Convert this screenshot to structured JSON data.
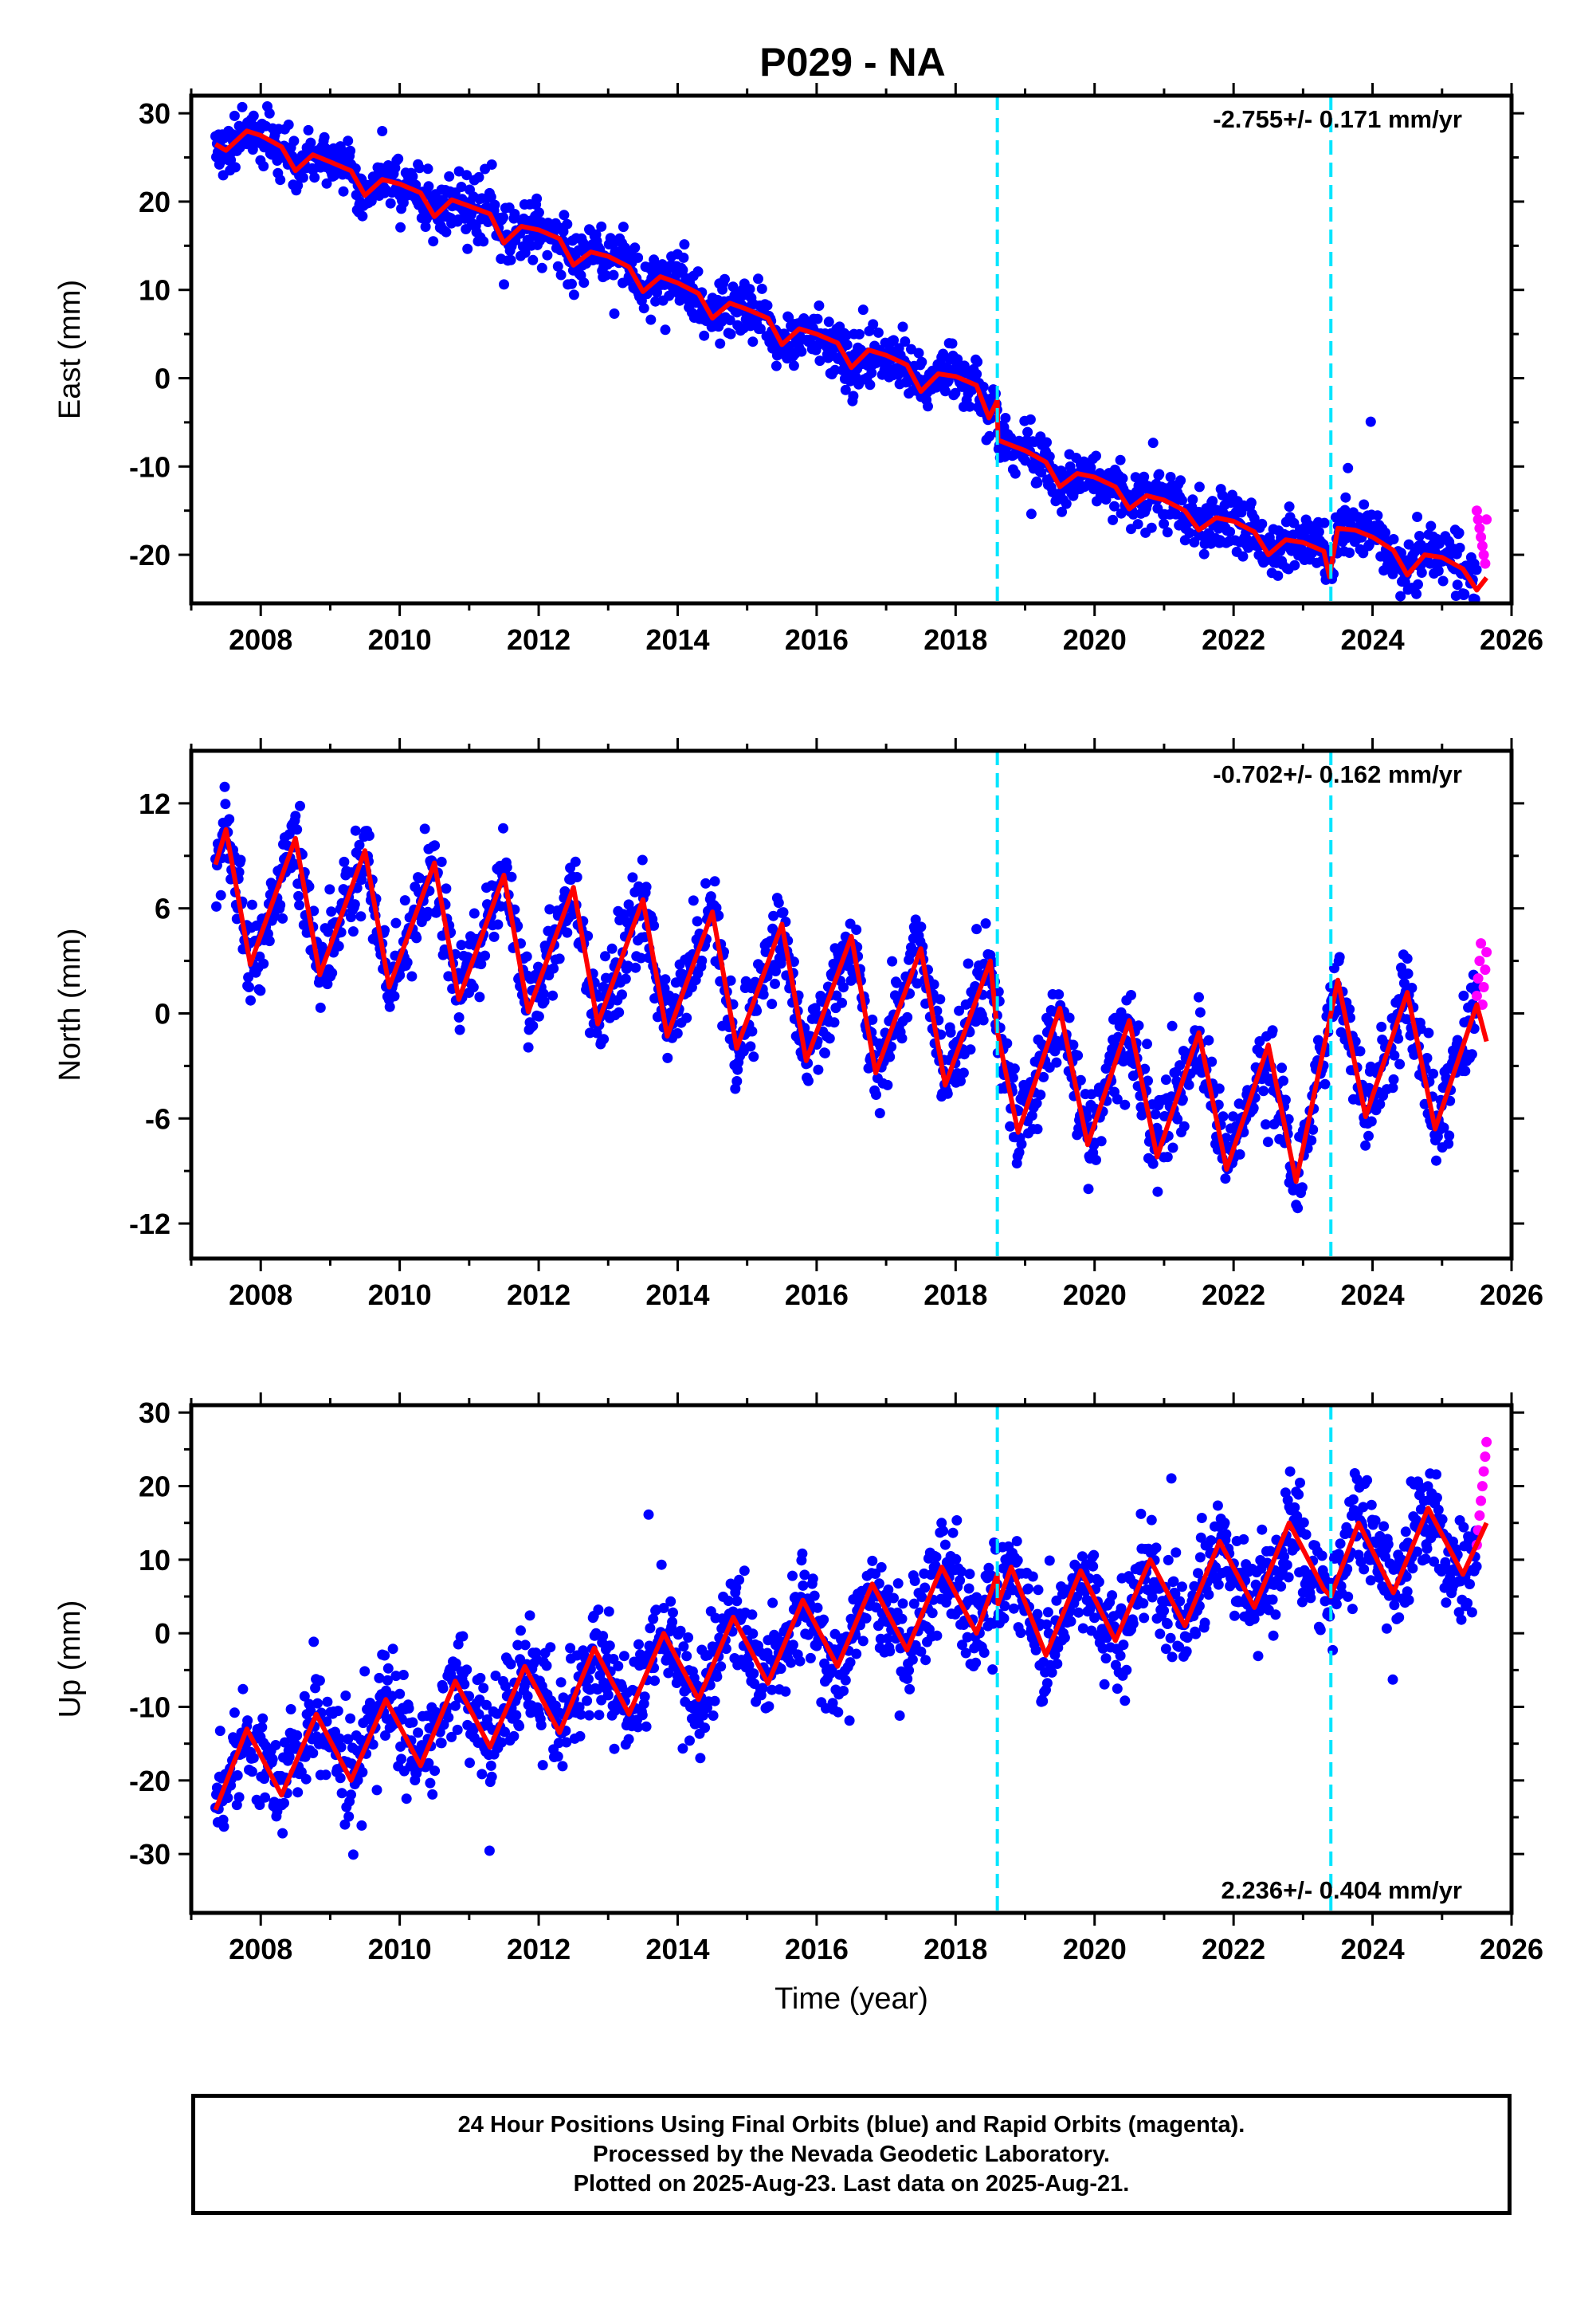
{
  "title": "P029 - NA",
  "colors": {
    "final_orbits": "#0000ff",
    "rapid_orbits": "#ff00ff",
    "model": "#ff0000",
    "events": "#00e5ff"
  },
  "footer": {
    "line1": "24 Hour Positions Using Final Orbits (blue) and Rapid Orbits (magenta).",
    "line2": "Processed by the Nevada Geodetic Laboratory.",
    "line3": "Plotted on 2025-Aug-23. Last data on 2025-Aug-21."
  },
  "chart_data": [
    {
      "type": "scatter",
      "component": "east",
      "ylabel": "East (mm)",
      "xlabel": "",
      "xlim": [
        2007.0,
        2026.0
      ],
      "ylim": [
        -25.5,
        32.0
      ],
      "xticks": [
        2008,
        2010,
        2012,
        2014,
        2016,
        2018,
        2020,
        2022,
        2024,
        2026
      ],
      "yticks": [
        -20,
        -10,
        0,
        10,
        20,
        30
      ],
      "rate_label": "-2.755+/- 0.171 mm/yr",
      "rate_position": "top-right",
      "event_lines": [
        2018.6,
        2023.4
      ],
      "data_start": 2007.35,
      "data_end": 2025.64,
      "rapid_start": 2025.5,
      "scatter_sd": 1.6,
      "model_curve": [
        [
          2007.35,
          26.5
        ],
        [
          2007.5,
          25.8
        ],
        [
          2007.8,
          28
        ],
        [
          2008.0,
          27.5
        ],
        [
          2008.3,
          26.2
        ],
        [
          2008.5,
          23.5
        ],
        [
          2008.75,
          25.3
        ],
        [
          2009.0,
          24.5
        ],
        [
          2009.3,
          23.5
        ],
        [
          2009.5,
          20.7
        ],
        [
          2009.75,
          22.5
        ],
        [
          2010.0,
          22
        ],
        [
          2010.3,
          21
        ],
        [
          2010.5,
          18.3
        ],
        [
          2010.75,
          20.2
        ],
        [
          2011.0,
          19.5
        ],
        [
          2011.3,
          18.6
        ],
        [
          2011.5,
          15.3
        ],
        [
          2011.75,
          17.2
        ],
        [
          2012.0,
          16.8
        ],
        [
          2012.3,
          15.8
        ],
        [
          2012.5,
          12.8
        ],
        [
          2012.75,
          14.3
        ],
        [
          2013.0,
          13.8
        ],
        [
          2013.3,
          12.6
        ],
        [
          2013.5,
          9.8
        ],
        [
          2013.75,
          11.5
        ],
        [
          2014.0,
          10.8
        ],
        [
          2014.3,
          9.6
        ],
        [
          2014.5,
          6.8
        ],
        [
          2014.75,
          8.5
        ],
        [
          2015.0,
          7.8
        ],
        [
          2015.3,
          6.8
        ],
        [
          2015.5,
          3.8
        ],
        [
          2015.75,
          5.6
        ],
        [
          2016.0,
          5
        ],
        [
          2016.3,
          4
        ],
        [
          2016.5,
          1.2
        ],
        [
          2016.75,
          3.2
        ],
        [
          2017.0,
          2.6
        ],
        [
          2017.3,
          1.5
        ],
        [
          2017.5,
          -1.5
        ],
        [
          2017.75,
          0.5
        ],
        [
          2018.0,
          0.2
        ],
        [
          2018.3,
          -0.8
        ],
        [
          2018.48,
          -4.5
        ],
        [
          2018.6,
          -2.5
        ],
        [
          2018.61,
          -7
        ],
        [
          2018.8,
          -7.6
        ],
        [
          2019.0,
          -8.2
        ],
        [
          2019.3,
          -9.5
        ],
        [
          2019.5,
          -12.3
        ],
        [
          2019.75,
          -10.8
        ],
        [
          2020.0,
          -11.2
        ],
        [
          2020.3,
          -12.3
        ],
        [
          2020.5,
          -14.8
        ],
        [
          2020.75,
          -13.3
        ],
        [
          2021.0,
          -13.8
        ],
        [
          2021.3,
          -15
        ],
        [
          2021.5,
          -17.2
        ],
        [
          2021.75,
          -15.8
        ],
        [
          2022.0,
          -16.2
        ],
        [
          2022.3,
          -17.4
        ],
        [
          2022.5,
          -20
        ],
        [
          2022.75,
          -18.3
        ],
        [
          2023.0,
          -18.6
        ],
        [
          2023.3,
          -19.6
        ],
        [
          2023.38,
          -22.5
        ],
        [
          2023.5,
          -17
        ],
        [
          2023.75,
          -17.2
        ],
        [
          2024.0,
          -18
        ],
        [
          2024.3,
          -19.5
        ],
        [
          2024.5,
          -22.3
        ],
        [
          2024.75,
          -20
        ],
        [
          2025.0,
          -20.3
        ],
        [
          2025.3,
          -21.6
        ],
        [
          2025.5,
          -24
        ],
        [
          2025.64,
          -22.6
        ]
      ],
      "rapid_values": [
        [
          2025.5,
          -15
        ],
        [
          2025.52,
          -16
        ],
        [
          2025.54,
          -17
        ],
        [
          2025.56,
          -18
        ],
        [
          2025.58,
          -19
        ],
        [
          2025.6,
          -20
        ],
        [
          2025.62,
          -21
        ],
        [
          2025.64,
          -16
        ]
      ]
    },
    {
      "type": "scatter",
      "component": "north",
      "ylabel": "North (mm)",
      "xlabel": "",
      "xlim": [
        2007.0,
        2026.0
      ],
      "ylim": [
        -14.0,
        15.0
      ],
      "xticks": [
        2008,
        2010,
        2012,
        2014,
        2016,
        2018,
        2020,
        2022,
        2024,
        2026
      ],
      "yticks": [
        -12,
        -6,
        0,
        6,
        12
      ],
      "rate_label": "-0.702+/- 0.162 mm/yr",
      "rate_position": "top-right",
      "event_lines": [
        2018.6,
        2023.4
      ],
      "data_start": 2007.35,
      "data_end": 2025.64,
      "rapid_start": 2025.5,
      "scatter_sd": 1.2,
      "model_curve": [
        [
          2007.35,
          8.5
        ],
        [
          2007.5,
          10.5
        ],
        [
          2007.85,
          2.8
        ],
        [
          2008.5,
          10.0
        ],
        [
          2008.85,
          2.2
        ],
        [
          2009.5,
          9.3
        ],
        [
          2009.85,
          1.5
        ],
        [
          2010.5,
          8.6
        ],
        [
          2010.85,
          0.8
        ],
        [
          2011.5,
          7.9
        ],
        [
          2011.85,
          0.1
        ],
        [
          2012.5,
          7.2
        ],
        [
          2012.85,
          -0.6
        ],
        [
          2013.5,
          6.5
        ],
        [
          2013.85,
          -1.3
        ],
        [
          2014.5,
          5.8
        ],
        [
          2014.85,
          -2.0
        ],
        [
          2015.5,
          5.1
        ],
        [
          2015.85,
          -2.7
        ],
        [
          2016.5,
          4.4
        ],
        [
          2016.85,
          -3.4
        ],
        [
          2017.5,
          3.7
        ],
        [
          2017.85,
          -4.1
        ],
        [
          2018.5,
          3.0
        ],
        [
          2018.6,
          -1.0
        ],
        [
          2018.9,
          -6.8
        ],
        [
          2019.5,
          0.3
        ],
        [
          2019.9,
          -7.5
        ],
        [
          2020.5,
          -0.4
        ],
        [
          2020.9,
          -8.2
        ],
        [
          2021.5,
          -1.1
        ],
        [
          2021.9,
          -8.9
        ],
        [
          2022.5,
          -1.8
        ],
        [
          2022.9,
          -9.6
        ],
        [
          2023.5,
          1.9
        ],
        [
          2023.9,
          -5.9
        ],
        [
          2024.5,
          1.2
        ],
        [
          2024.9,
          -6.6
        ],
        [
          2025.5,
          0.5
        ],
        [
          2025.64,
          -1.6
        ]
      ],
      "rapid_values": [
        [
          2025.5,
          1
        ],
        [
          2025.52,
          2
        ],
        [
          2025.54,
          3
        ],
        [
          2025.56,
          4
        ],
        [
          2025.58,
          0.5
        ],
        [
          2025.6,
          1.5
        ],
        [
          2025.62,
          2.5
        ],
        [
          2025.64,
          3.5
        ]
      ]
    },
    {
      "type": "scatter",
      "component": "up",
      "ylabel": "Up (mm)",
      "xlabel": "Time (year)",
      "xlim": [
        2007.0,
        2026.0
      ],
      "ylim": [
        -38.0,
        31.0
      ],
      "xticks": [
        2008,
        2010,
        2012,
        2014,
        2016,
        2018,
        2020,
        2022,
        2024,
        2026
      ],
      "yticks": [
        -30,
        -20,
        -10,
        0,
        10,
        20,
        30
      ],
      "rate_label": "2.236+/- 0.404 mm/yr",
      "rate_position": "bottom-right",
      "event_lines": [
        2018.6,
        2023.4
      ],
      "data_start": 2007.35,
      "data_end": 2025.64,
      "rapid_start": 2025.5,
      "scatter_sd": 3.6,
      "model_curve": [
        [
          2007.35,
          -24
        ],
        [
          2007.8,
          -13
        ],
        [
          2008.3,
          -22
        ],
        [
          2008.8,
          -11
        ],
        [
          2009.3,
          -20
        ],
        [
          2009.8,
          -9
        ],
        [
          2010.3,
          -18
        ],
        [
          2010.8,
          -6.5
        ],
        [
          2011.3,
          -15.5
        ],
        [
          2011.8,
          -4.5
        ],
        [
          2012.3,
          -13.5
        ],
        [
          2012.8,
          -2
        ],
        [
          2013.3,
          -11
        ],
        [
          2013.8,
          0
        ],
        [
          2014.3,
          -9
        ],
        [
          2014.8,
          2.2
        ],
        [
          2015.3,
          -6.8
        ],
        [
          2015.8,
          4.5
        ],
        [
          2016.3,
          -4.5
        ],
        [
          2016.8,
          6.7
        ],
        [
          2017.3,
          -2.3
        ],
        [
          2017.8,
          9
        ],
        [
          2018.3,
          0
        ],
        [
          2018.6,
          8
        ],
        [
          2018.61,
          4
        ],
        [
          2018.8,
          9
        ],
        [
          2019.3,
          -3
        ],
        [
          2019.8,
          8.5
        ],
        [
          2020.3,
          -1
        ],
        [
          2020.8,
          10
        ],
        [
          2021.3,
          1
        ],
        [
          2021.8,
          12.5
        ],
        [
          2022.3,
          3.5
        ],
        [
          2022.8,
          15
        ],
        [
          2023.3,
          6
        ],
        [
          2023.4,
          5
        ],
        [
          2023.8,
          15
        ],
        [
          2024.3,
          5.5
        ],
        [
          2024.8,
          17
        ],
        [
          2025.3,
          8
        ],
        [
          2025.64,
          15
        ]
      ],
      "rapid_values": [
        [
          2025.5,
          12
        ],
        [
          2025.52,
          14
        ],
        [
          2025.54,
          16
        ],
        [
          2025.56,
          18
        ],
        [
          2025.58,
          20
        ],
        [
          2025.6,
          22
        ],
        [
          2025.62,
          24
        ],
        [
          2025.64,
          26
        ]
      ]
    }
  ]
}
